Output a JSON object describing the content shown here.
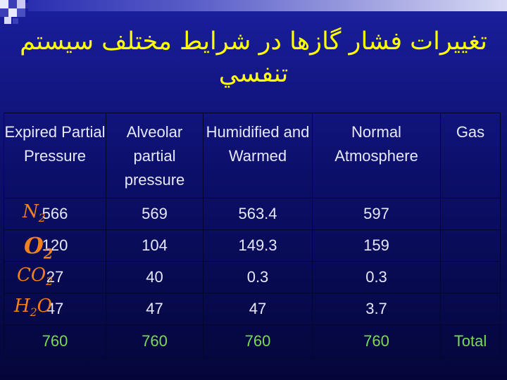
{
  "title": "تغييرات فشار گازها در شرايط مختلف سيستم تنفسي",
  "table": {
    "headers": [
      "Expired Partial Pressure",
      "Alveolar partial pressure",
      "Humidified and Warmed",
      "Normal Atmosphere",
      "Gas"
    ],
    "rows": [
      {
        "gas": "N2",
        "expired": "566",
        "alveolar": "569",
        "humidified": "563.4",
        "normal": "597"
      },
      {
        "gas": "O2",
        "expired": "120",
        "alveolar": "104",
        "humidified": "149.3",
        "normal": "159"
      },
      {
        "gas": "CO2",
        "expired": "27",
        "alveolar": "40",
        "humidified": "0.3",
        "normal": "0.3"
      },
      {
        "gas": "H2O",
        "expired": "47",
        "alveolar": "47",
        "humidified": "47",
        "normal": "3.7"
      }
    ],
    "total": {
      "expired": "760",
      "alveolar": "760",
      "humidified": "760",
      "normal": "760",
      "label": "Total"
    }
  },
  "colors": {
    "title": "#ffff00",
    "total_row": "#7cd957",
    "gas_formula": "#f08020",
    "background": "#0c0f6a"
  }
}
